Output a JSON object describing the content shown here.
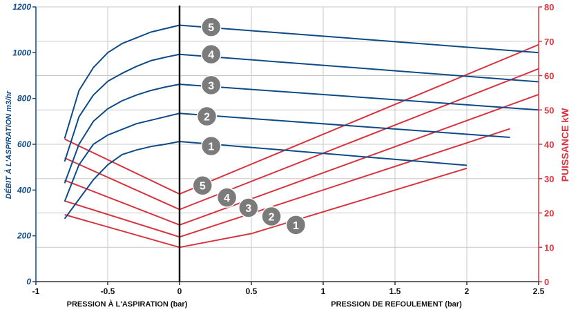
{
  "chart_data": {
    "type": "line",
    "x_axis": {
      "range": [
        -1,
        2.5
      ],
      "ticks": [
        "-1",
        "-0.5",
        "0",
        "0.5",
        "1",
        "1.5",
        "2",
        "2.5"
      ],
      "ticks_left": [
        -1,
        -0.5,
        0,
        0.5,
        1,
        1.5,
        2,
        2.5
      ],
      "label_left": "PRESSION À L'ASPIRATION (bar)",
      "label_right": "PRESSION DE REFOULEMENT (bar)"
    },
    "y_left": {
      "label": "DÉBIT À L'ASPIRATION m3/hr",
      "range": [
        0,
        1200
      ],
      "ticks": [
        0,
        200,
        400,
        600,
        800,
        1000,
        1200
      ]
    },
    "y_right": {
      "label": "PUISSANCE kW",
      "range": [
        0,
        80
      ],
      "ticks": [
        0,
        10,
        20,
        30,
        40,
        50,
        60,
        70,
        80
      ]
    },
    "grid": true,
    "colors": {
      "flow": "#0d4a86",
      "power": "#d8343f",
      "badge": "#7b7b7b",
      "grid": "#c8c8c8",
      "divider": "#111111"
    },
    "flow_series": [
      {
        "name": "1",
        "points": [
          [
            -0.8,
            275
          ],
          [
            -0.7,
            360
          ],
          [
            -0.6,
            445
          ],
          [
            -0.5,
            510
          ],
          [
            -0.4,
            555
          ],
          [
            -0.3,
            575
          ],
          [
            -0.2,
            590
          ],
          [
            -0.1,
            600
          ],
          [
            0,
            612
          ],
          [
            2,
            508
          ]
        ]
      },
      {
        "name": "2",
        "points": [
          [
            -0.8,
            350
          ],
          [
            -0.7,
            510
          ],
          [
            -0.6,
            600
          ],
          [
            -0.5,
            640
          ],
          [
            -0.4,
            665
          ],
          [
            -0.3,
            690
          ],
          [
            -0.2,
            705
          ],
          [
            -0.1,
            720
          ],
          [
            0,
            735
          ],
          [
            2.3,
            630
          ]
        ]
      },
      {
        "name": "3",
        "points": [
          [
            -0.8,
            430
          ],
          [
            -0.7,
            600
          ],
          [
            -0.6,
            700
          ],
          [
            -0.5,
            755
          ],
          [
            -0.4,
            790
          ],
          [
            -0.3,
            815
          ],
          [
            -0.2,
            835
          ],
          [
            -0.1,
            850
          ],
          [
            0,
            862
          ],
          [
            2.5,
            750
          ]
        ]
      },
      {
        "name": "4",
        "points": [
          [
            -0.8,
            525
          ],
          [
            -0.7,
            720
          ],
          [
            -0.6,
            815
          ],
          [
            -0.5,
            875
          ],
          [
            -0.4,
            910
          ],
          [
            -0.3,
            940
          ],
          [
            -0.2,
            965
          ],
          [
            -0.1,
            980
          ],
          [
            0,
            993
          ],
          [
            2.5,
            873
          ]
        ]
      },
      {
        "name": "5",
        "points": [
          [
            -0.8,
            625
          ],
          [
            -0.7,
            835
          ],
          [
            -0.6,
            935
          ],
          [
            -0.5,
            1000
          ],
          [
            -0.4,
            1040
          ],
          [
            -0.3,
            1065
          ],
          [
            -0.2,
            1090
          ],
          [
            -0.1,
            1105
          ],
          [
            0,
            1120
          ],
          [
            2.5,
            1000
          ]
        ]
      }
    ],
    "power_series": [
      {
        "name": "1",
        "points": [
          [
            -0.8,
            19.5
          ],
          [
            0,
            10
          ],
          [
            0.5,
            14
          ],
          [
            2,
            33
          ]
        ]
      },
      {
        "name": "2",
        "points": [
          [
            -0.8,
            23.5
          ],
          [
            0,
            13
          ],
          [
            2.3,
            44.5
          ]
        ]
      },
      {
        "name": "3",
        "points": [
          [
            -0.8,
            29.5
          ],
          [
            0,
            16.5
          ],
          [
            2.5,
            54.5
          ]
        ]
      },
      {
        "name": "4",
        "points": [
          [
            -0.8,
            36
          ],
          [
            0,
            21
          ],
          [
            2.5,
            62
          ]
        ]
      },
      {
        "name": "5",
        "points": [
          [
            -0.8,
            41.5
          ],
          [
            0,
            25.5
          ],
          [
            2.5,
            69
          ]
        ]
      }
    ],
    "flow_badges": [
      {
        "label": "5",
        "x": 0.22,
        "y": 1112
      },
      {
        "label": "4",
        "x": 0.22,
        "y": 993
      },
      {
        "label": "3",
        "x": 0.22,
        "y": 858
      },
      {
        "label": "2",
        "x": 0.19,
        "y": 722
      },
      {
        "label": "1",
        "x": 0.22,
        "y": 592
      }
    ],
    "power_badges": [
      {
        "label": "5",
        "x": 0.16,
        "y": 28
      },
      {
        "label": "4",
        "x": 0.33,
        "y": 24.5
      },
      {
        "label": "3",
        "x": 0.48,
        "y": 21.5
      },
      {
        "label": "2",
        "x": 0.64,
        "y": 19
      },
      {
        "label": "1",
        "x": 0.81,
        "y": 16.5
      }
    ]
  }
}
